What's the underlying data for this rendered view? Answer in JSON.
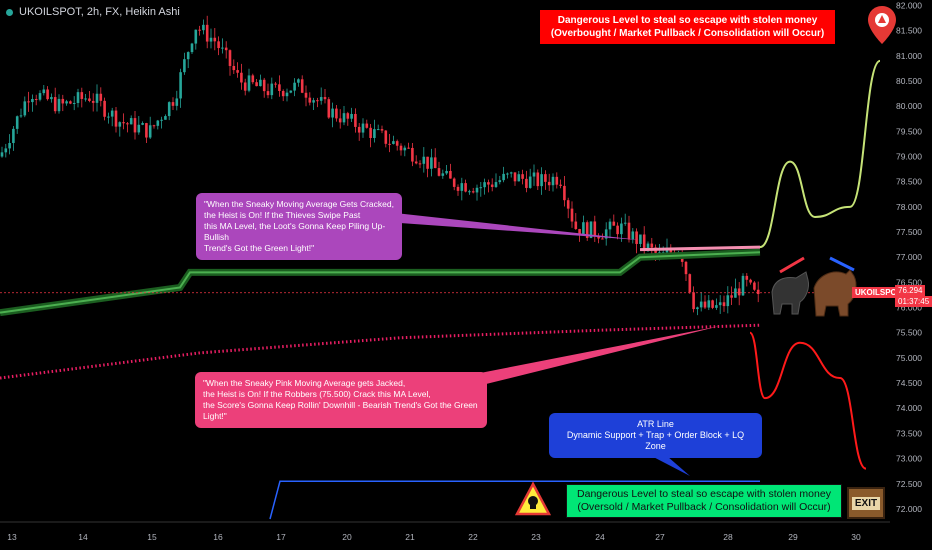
{
  "header": {
    "symbol": "UKOILSPOT, 2h, FX, Heikin Ashi"
  },
  "boxes": {
    "top_red": "Dangerous Level to steal so escape with stolen money\n(Overbought / Market Pullback / Consolidation will Occur)",
    "purple": "\"When the Sneaky  Moving Average Gets Cracked,\nthe Heist is On! If the Thieves Swipe Past\nthis MA Level, the Loot's Gonna Keep Piling Up-Bullish\nTrend's Got the Green Light!\"",
    "pink": "\"When the Sneaky Pink Moving Average gets Jacked,\nthe Heist is On! If the Robbers (75.500) Crack this MA Level,\nthe Score's Gonna Keep Rollin' Downhill - Bearish Trend's Got the Green Light!\"",
    "blue": "ATR Line\nDynamic Support + Trap + Order Block + LQ Zone",
    "bottom_green": "Dangerous Level to steal so escape with stolen money\n(Oversold / Market Pullback / Consolidation will Occur)",
    "exit": "EXIT"
  },
  "price_tags": {
    "symbol": "UKOILSPOT",
    "price": "76.294",
    "timer": "01:37:45"
  },
  "colors": {
    "bull": "#26a69a",
    "bear": "#f23645",
    "ma_green": "#4caf50",
    "ma_pink": "#e91e63",
    "atr": "#2962ff",
    "bg": "#000000"
  },
  "chart_data": {
    "type": "candlestick",
    "y_ticks": [
      "82.000",
      "81.500",
      "81.000",
      "80.500",
      "80.000",
      "79.500",
      "79.000",
      "78.500",
      "78.000",
      "77.500",
      "77.000",
      "76.500",
      "76.000",
      "75.500",
      "75.000",
      "74.500",
      "74.000",
      "73.500",
      "73.000",
      "72.500",
      "72.000"
    ],
    "ylim": [
      71.8,
      82.05
    ],
    "x_ticks": [
      "13",
      "14",
      "15",
      "16",
      "17",
      "20",
      "21",
      "22",
      "23",
      "24",
      "27",
      "28",
      "29",
      "30"
    ],
    "candle_anchors": [
      [
        0,
        79.0
      ],
      [
        30,
        80.3
      ],
      [
        60,
        80.0
      ],
      [
        90,
        80.2
      ],
      [
        120,
        79.7
      ],
      [
        150,
        79.5
      ],
      [
        175,
        80.2
      ],
      [
        195,
        81.6
      ],
      [
        215,
        81.3
      ],
      [
        240,
        80.5
      ],
      [
        270,
        80.3
      ],
      [
        300,
        80.4
      ],
      [
        330,
        79.9
      ],
      [
        360,
        79.6
      ],
      [
        390,
        79.3
      ],
      [
        420,
        79.0
      ],
      [
        450,
        78.5
      ],
      [
        480,
        78.4
      ],
      [
        510,
        78.6
      ],
      [
        540,
        78.5
      ],
      [
        560,
        78.6
      ],
      [
        575,
        77.6
      ],
      [
        600,
        77.5
      ],
      [
        620,
        77.6
      ],
      [
        640,
        77.3
      ],
      [
        660,
        77.0
      ],
      [
        680,
        77.2
      ],
      [
        695,
        76.0
      ],
      [
        720,
        76.0
      ],
      [
        745,
        76.5
      ],
      [
        760,
        76.1
      ]
    ],
    "ma_green": [
      [
        0,
        75.9
      ],
      [
        180,
        76.4
      ],
      [
        190,
        76.7
      ],
      [
        620,
        76.7
      ],
      [
        640,
        77.0
      ],
      [
        760,
        77.1
      ]
    ],
    "ma_pink": [
      [
        0,
        74.6
      ],
      [
        200,
        75.1
      ],
      [
        400,
        75.4
      ],
      [
        600,
        75.55
      ],
      [
        760,
        75.65
      ]
    ],
    "atr_line": [
      [
        270,
        71.8
      ],
      [
        280,
        72.55
      ],
      [
        760,
        72.55
      ]
    ],
    "forecast_up": [
      [
        760,
        77.2
      ],
      [
        790,
        78.9
      ],
      [
        815,
        77.8
      ],
      [
        850,
        78.0
      ],
      [
        880,
        80.9
      ]
    ],
    "forecast_down": [
      [
        750,
        75.5
      ],
      [
        765,
        74.2
      ],
      [
        800,
        75.3
      ],
      [
        840,
        74.6
      ],
      [
        866,
        72.8
      ]
    ],
    "current_price": 76.294
  }
}
